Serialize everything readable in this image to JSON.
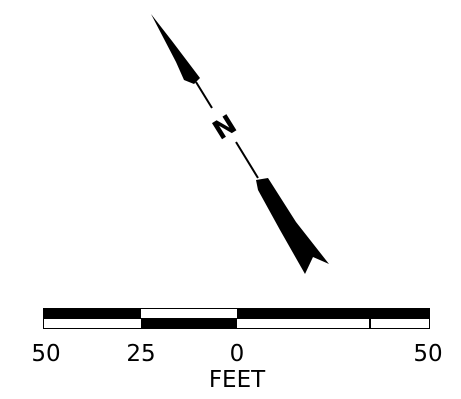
{
  "north_arrow": {
    "label": "N"
  },
  "scale_bar": {
    "unit": "FEET",
    "tick_labels": [
      "50",
      "25",
      "0",
      "50"
    ],
    "tick_values": [
      -50,
      -25,
      0,
      50
    ],
    "bar_colors": {
      "dark": "#000000",
      "light": "#ffffff"
    }
  }
}
